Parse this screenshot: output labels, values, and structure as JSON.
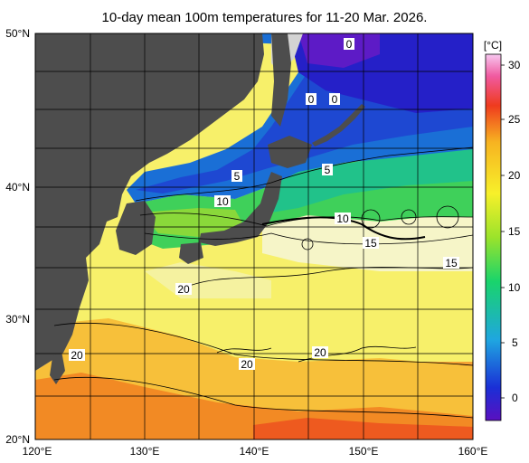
{
  "title": "10-day mean 100m temperatures for 11-20 Mar. 2026.",
  "lat_labels": [
    "50°N",
    "40°N",
    "30°N",
    "20°N"
  ],
  "lon_labels": [
    "120°E",
    "130°E",
    "140°E",
    "150°E",
    "160°E"
  ],
  "colorbar": {
    "unit": "[°C]",
    "ticks": [
      "30",
      "25",
      "20",
      "15",
      "10",
      "5",
      "0"
    ],
    "range": [
      -2,
      32
    ],
    "stops": [
      "#5a10c0",
      "#1a2fd6",
      "#1fa6e0",
      "#19d46b",
      "#9be32b",
      "#f7f02a",
      "#f7b321",
      "#ef3b1e",
      "#f05aa0",
      "#f7c8f0"
    ]
  },
  "contour_labels": [
    "0",
    "0",
    "0",
    "5",
    "5",
    "10",
    "10",
    "15",
    "15",
    "20",
    "20",
    "20",
    "20"
  ],
  "colors": {
    "land": "#4d4d4d",
    "land_far": "#d3d3d3",
    "grid": "#000000",
    "contour": "#000000"
  }
}
